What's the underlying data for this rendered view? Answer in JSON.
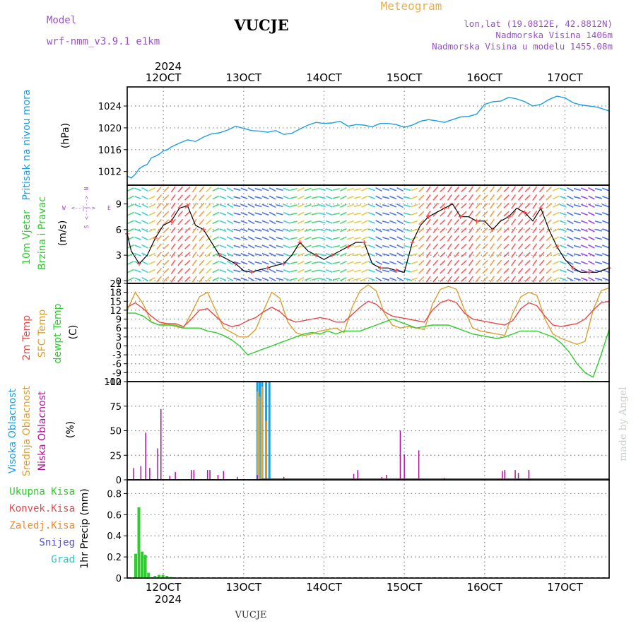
{
  "header": {
    "model_label": "Model",
    "model_name": "wrf-nmm_v3.9.1  e1km",
    "station": "VUCJE",
    "title": "Meteogram",
    "lonlat": "lon,lat (19.0812E, 42.8812N)",
    "elevation": "Nadmorska Visina 1406m",
    "model_elevation": "Nadmorska Visina u modelu 1455.08m"
  },
  "footer": {
    "station": "VUCJE",
    "credit": "made by Angel"
  },
  "colors": {
    "pressure": "#1a9fe0",
    "t2m": "#e84a4a",
    "sfc": "#d9a030",
    "dew": "#2ecc2e",
    "cloud_high": "#1a9fe0",
    "cloud_mid": "#e0a030",
    "cloud_low": "#b0109a",
    "precip": "#2ecc2e",
    "grid": "#888888"
  },
  "time_axis": {
    "year": "2024",
    "labels": [
      "12OCT",
      "13OCT",
      "14OCT",
      "15OCT",
      "16OCT",
      "17OCT"
    ],
    "label_days": [
      12,
      13,
      14,
      15,
      16,
      17
    ],
    "range_days": [
      11.55,
      17.55
    ]
  },
  "panels": {
    "pressure": {
      "ylabel1": "Pritisak na nivou mora",
      "ylabel2": "(hPa)"
    },
    "wind": {
      "ylabel1": "10m  Vjetar",
      "ylabel2": "Brzina i Pravac",
      "ylabel3": "(m/s)",
      "compass": {
        "w": "W",
        "e": "E",
        "arrow": "<--|-->",
        "n": "N",
        "s": "S"
      }
    },
    "temp": {
      "ylabel1": "2m Temp",
      "ylabel2": "SFC Temp",
      "ylabel3": "dewpt Temp",
      "ylabel4": "(C)"
    },
    "cloud": {
      "ylabel1": "Visoka Oblacnost",
      "ylabel2": "Srednja Oblacnost",
      "ylabel3": "Niska  Oblacnost",
      "ylabel4": "(%)"
    },
    "precip": {
      "ylabel1": "1hr Precip (mm)",
      "legend": [
        "Ukupna  Kisa",
        "Konvek.Kisa",
        "Zaledj.Kisa",
        "Snijeg",
        "Grad"
      ]
    }
  },
  "chart_data": [
    {
      "type": "line",
      "title": "",
      "ylabel": "(hPa)",
      "ylim": [
        1009.5,
        1027.5
      ],
      "yticks": [
        1012,
        1016,
        1020,
        1024
      ],
      "series": [
        {
          "name": "Pritisak na nivou mora",
          "x": [
            11.55,
            11.6,
            11.65,
            11.7,
            11.75,
            11.8,
            11.85,
            11.9,
            11.95,
            12.0,
            12.05,
            12.1,
            12.2,
            12.3,
            12.4,
            12.5,
            12.6,
            12.7,
            12.8,
            12.9,
            13.0,
            13.1,
            13.2,
            13.3,
            13.4,
            13.5,
            13.6,
            13.7,
            13.8,
            13.9,
            14.0,
            14.1,
            14.2,
            14.3,
            14.4,
            14.5,
            14.6,
            14.7,
            14.8,
            14.9,
            15.0,
            15.1,
            15.2,
            15.3,
            15.4,
            15.5,
            15.6,
            15.7,
            15.8,
            15.9,
            16.0,
            16.1,
            16.2,
            16.3,
            16.4,
            16.5,
            16.6,
            16.7,
            16.8,
            16.9,
            17.0,
            17.1,
            17.2,
            17.3,
            17.4,
            17.55
          ],
          "y": [
            1011.2,
            1010.8,
            1011.5,
            1012.5,
            1013.0,
            1013.3,
            1014.5,
            1014.8,
            1015.2,
            1015.8,
            1016.0,
            1016.5,
            1017.2,
            1017.8,
            1017.5,
            1018.3,
            1018.9,
            1019.1,
            1019.6,
            1020.3,
            1019.9,
            1019.5,
            1019.4,
            1019.2,
            1019.5,
            1018.8,
            1019.0,
            1019.8,
            1020.5,
            1021.0,
            1020.8,
            1020.9,
            1021.2,
            1020.3,
            1020.6,
            1020.5,
            1020.2,
            1020.8,
            1020.8,
            1020.6,
            1020.1,
            1020.5,
            1021.2,
            1021.5,
            1021.3,
            1021.0,
            1021.5,
            1022.0,
            1022.1,
            1022.5,
            1024.3,
            1024.8,
            1024.9,
            1025.6,
            1025.3,
            1024.8,
            1024.0,
            1024.3,
            1025.2,
            1025.8,
            1025.5,
            1024.6,
            1024.2,
            1024.0,
            1023.8,
            1023.1
          ]
        }
      ]
    },
    {
      "type": "line",
      "title": "",
      "ylabel": "(m/s)",
      "ylim": [
        -0.3,
        11.2
      ],
      "yticks": [
        0,
        3,
        6,
        9
      ],
      "series": [
        {
          "name": "10m Vjetar Brzina",
          "x": [
            11.55,
            11.6,
            11.7,
            11.8,
            11.9,
            12.0,
            12.1,
            12.2,
            12.3,
            12.4,
            12.5,
            12.6,
            12.7,
            12.8,
            12.9,
            13.0,
            13.1,
            13.2,
            13.3,
            13.4,
            13.5,
            13.6,
            13.7,
            13.8,
            13.9,
            14.0,
            14.1,
            14.2,
            14.3,
            14.4,
            14.5,
            14.6,
            14.7,
            14.8,
            14.9,
            15.0,
            15.1,
            15.2,
            15.3,
            15.4,
            15.5,
            15.6,
            15.7,
            15.8,
            15.9,
            16.0,
            16.1,
            16.2,
            16.3,
            16.4,
            16.5,
            16.6,
            16.7,
            16.8,
            16.9,
            17.0,
            17.1,
            17.2,
            17.3,
            17.4,
            17.55
          ],
          "y": [
            5.5,
            3.5,
            2.0,
            3.0,
            5.0,
            6.5,
            7.0,
            8.5,
            8.8,
            6.5,
            6.0,
            4.5,
            3.0,
            2.5,
            2.0,
            1.2,
            1.0,
            1.3,
            1.5,
            1.8,
            2.0,
            3.0,
            4.5,
            3.5,
            3.0,
            2.5,
            3.0,
            3.5,
            4.0,
            4.5,
            4.5,
            2.0,
            1.5,
            1.5,
            1.2,
            1.0,
            4.5,
            6.5,
            7.5,
            8.0,
            8.5,
            9.0,
            7.5,
            7.5,
            7.0,
            7.0,
            6.0,
            7.0,
            7.5,
            8.5,
            8.0,
            7.0,
            8.5,
            6.0,
            4.0,
            2.5,
            1.5,
            1.0,
            1.0,
            1.0,
            1.5
          ]
        }
      ]
    },
    {
      "type": "line",
      "title": "",
      "ylabel": "(C)",
      "ylim": [
        -12,
        21
      ],
      "yticks": [
        -12,
        -9,
        -6,
        -3,
        0,
        3,
        6,
        9,
        12,
        15,
        18,
        21
      ],
      "series": [
        {
          "name": "2m Temp",
          "x": [
            11.55,
            11.65,
            11.75,
            11.85,
            11.95,
            12.05,
            12.15,
            12.25,
            12.35,
            12.45,
            12.55,
            12.65,
            12.75,
            12.85,
            12.95,
            13.05,
            13.15,
            13.25,
            13.35,
            13.45,
            13.55,
            13.65,
            13.75,
            13.85,
            13.95,
            14.05,
            14.15,
            14.25,
            14.35,
            14.45,
            14.55,
            14.65,
            14.75,
            14.85,
            14.95,
            15.05,
            15.15,
            15.25,
            15.35,
            15.45,
            15.55,
            15.65,
            15.75,
            15.85,
            15.95,
            16.05,
            16.15,
            16.25,
            16.35,
            16.45,
            16.55,
            16.65,
            16.75,
            16.85,
            16.95,
            17.05,
            17.15,
            17.25,
            17.35,
            17.45,
            17.55
          ],
          "y": [
            13,
            14.5,
            12.5,
            10,
            8,
            7.5,
            7.5,
            6.5,
            9,
            12,
            12.5,
            10,
            7.5,
            6.5,
            7,
            8.5,
            9.5,
            11.5,
            13,
            11.5,
            9,
            8,
            8.5,
            9,
            9.5,
            9,
            8,
            8,
            10.5,
            13,
            15,
            14,
            11.5,
            10,
            9.5,
            9,
            8.5,
            8,
            12,
            14.5,
            15.5,
            14.5,
            11,
            9,
            8.5,
            8,
            7.5,
            7,
            8.5,
            12.5,
            14.5,
            13.5,
            10,
            7,
            6.5,
            7,
            7.5,
            9,
            12,
            14.5,
            15
          ]
        },
        {
          "name": "SFC Temp",
          "x": [
            11.55,
            11.65,
            11.75,
            11.85,
            11.95,
            12.05,
            12.15,
            12.25,
            12.35,
            12.45,
            12.55,
            12.65,
            12.75,
            12.85,
            12.95,
            13.05,
            13.15,
            13.25,
            13.35,
            13.45,
            13.55,
            13.65,
            13.75,
            13.85,
            13.95,
            14.05,
            14.15,
            14.25,
            14.35,
            14.45,
            14.55,
            14.65,
            14.75,
            14.85,
            14.95,
            15.05,
            15.15,
            15.25,
            15.35,
            15.45,
            15.55,
            15.65,
            15.75,
            15.85,
            15.95,
            16.05,
            16.15,
            16.25,
            16.35,
            16.45,
            16.55,
            16.65,
            16.75,
            16.85,
            16.95,
            17.05,
            17.15,
            17.25,
            17.35,
            17.45,
            17.55
          ],
          "y": [
            12,
            18,
            14,
            8,
            7,
            7.5,
            6.5,
            6,
            11,
            16.5,
            18,
            12,
            6,
            4.5,
            3,
            3,
            5.5,
            12,
            18,
            16,
            8,
            4.5,
            3.5,
            4,
            5,
            5.5,
            6,
            4.5,
            13,
            18.5,
            20.5,
            18.5,
            11,
            7,
            6,
            6.5,
            6,
            5.5,
            14,
            19,
            20,
            19,
            12,
            6,
            5,
            4.5,
            4,
            3.5,
            11,
            16.5,
            18,
            17,
            9,
            4,
            2.5,
            1.5,
            0.5,
            1.5,
            12,
            18.5,
            19.5
          ]
        },
        {
          "name": "dewpt Temp",
          "x": [
            11.55,
            11.65,
            11.75,
            11.85,
            11.95,
            12.05,
            12.15,
            12.25,
            12.35,
            12.45,
            12.55,
            12.65,
            12.75,
            12.85,
            12.95,
            13.05,
            13.15,
            13.25,
            13.35,
            13.45,
            13.55,
            13.65,
            13.75,
            13.85,
            13.95,
            14.05,
            14.15,
            14.25,
            14.35,
            14.45,
            14.55,
            14.65,
            14.75,
            14.85,
            14.95,
            15.05,
            15.15,
            15.25,
            15.35,
            15.45,
            15.55,
            15.65,
            15.75,
            15.85,
            15.95,
            16.05,
            16.15,
            16.25,
            16.35,
            16.45,
            16.55,
            16.65,
            16.75,
            16.85,
            16.95,
            17.05,
            17.15,
            17.25,
            17.35,
            17.45,
            17.55
          ],
          "y": [
            11,
            11,
            10,
            8,
            7,
            7,
            7,
            6,
            6,
            6,
            5,
            4.5,
            3.5,
            2,
            0,
            -3,
            -2,
            -1,
            0,
            1,
            2,
            3,
            4,
            4.5,
            4,
            5,
            4,
            5,
            5,
            5,
            6,
            7,
            8,
            9,
            8,
            7,
            6,
            6.5,
            7,
            7,
            7,
            6,
            5,
            4,
            3.5,
            3,
            2.5,
            3,
            4,
            5,
            5,
            5,
            4,
            3,
            1,
            -2,
            -6,
            -9,
            -10.5,
            -3,
            5.5
          ]
        }
      ]
    },
    {
      "type": "bar",
      "title": "",
      "ylabel": "(%)",
      "ylim": [
        0,
        100
      ],
      "yticks": [
        0,
        25,
        50,
        75,
        100
      ],
      "series": [
        {
          "name": "Visoka Oblacnost",
          "x": [
            13.17,
            13.2,
            13.23,
            13.28,
            13.32
          ],
          "values": [
            100,
            100,
            100,
            100,
            100
          ]
        },
        {
          "name": "Srednja Oblacnost",
          "x": [
            13.17,
            13.2,
            13.23,
            13.28
          ],
          "values": [
            90,
            85,
            95,
            60
          ]
        },
        {
          "name": "Niska  Oblacnost",
          "x": [
            11.63,
            11.72,
            11.78,
            11.83,
            11.93,
            11.97,
            12.08,
            12.15,
            12.35,
            12.38,
            12.55,
            12.58,
            12.68,
            12.75,
            12.92,
            13.17,
            13.5,
            14.37,
            14.42,
            14.72,
            14.78,
            14.95,
            15.0,
            15.18,
            15.5,
            16.22,
            16.25,
            16.38,
            16.42,
            16.55
          ],
          "values": [
            12,
            14,
            48,
            12,
            32,
            72,
            4,
            8,
            10,
            10,
            10,
            10,
            5,
            9,
            3,
            5,
            3,
            6,
            10,
            3,
            5,
            50,
            26,
            30,
            2,
            9,
            10,
            10,
            7,
            10
          ]
        }
      ]
    },
    {
      "type": "bar",
      "title": "",
      "ylabel": "1hr Precip (mm)",
      "ylim": [
        0,
        0.93
      ],
      "yticks": [
        0,
        0.2,
        0.4,
        0.6,
        0.8
      ],
      "series": [
        {
          "name": "Ukupna  Kisa",
          "x": [
            11.66,
            11.7,
            11.74,
            11.78,
            11.82,
            11.9,
            11.95,
            12.0,
            12.05,
            12.1
          ],
          "values": [
            0.23,
            0.67,
            0.25,
            0.22,
            0.05,
            0.02,
            0.03,
            0.03,
            0.02,
            0.01
          ]
        }
      ]
    }
  ]
}
